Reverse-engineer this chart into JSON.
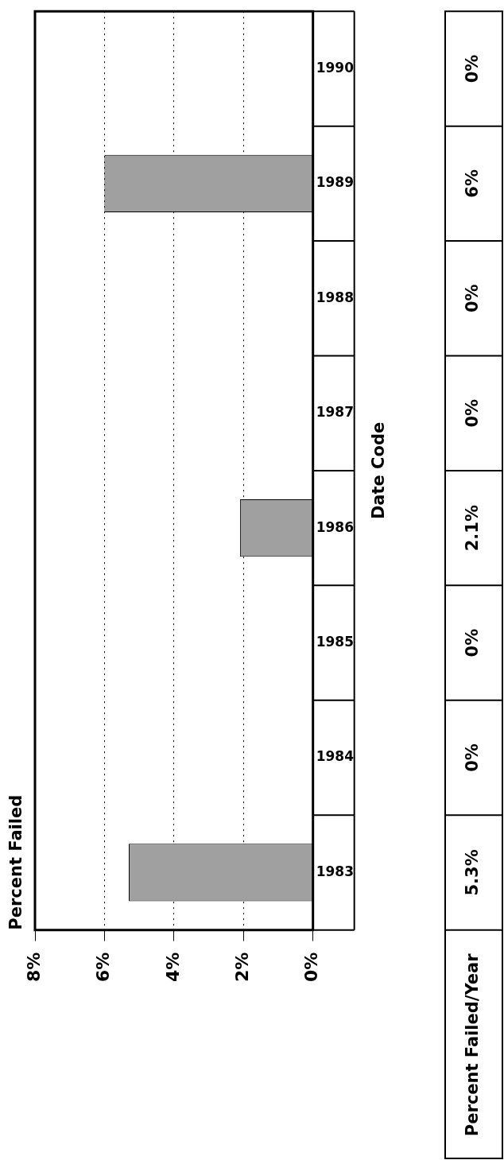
{
  "chart_data": {
    "type": "bar",
    "orientation": "horizontal",
    "ylabel": "Date Code",
    "categories": [
      "1990",
      "1989",
      "1988",
      "1987",
      "1986",
      "1985",
      "1984",
      "1983"
    ],
    "values": [
      0,
      6,
      0,
      0,
      2.1,
      0,
      0,
      5.3
    ],
    "value_labels": [
      "0%",
      "6%",
      "0%",
      "0%",
      "2.1%",
      "0%",
      "0%",
      "5.3%"
    ],
    "color": "#a0a0a0",
    "xlim": [
      8,
      0
    ],
    "xticks": [
      {
        "value": 0,
        "label": "0%"
      },
      {
        "value": 2,
        "label": "2%"
      },
      {
        "value": 4,
        "label": "4%"
      },
      {
        "value": 6,
        "label": "6%"
      },
      {
        "value": 8,
        "label": "8%"
      }
    ],
    "grid": "x",
    "line_style": "dotted",
    "annotations": [
      "Percent Failed",
      "Percent Failed/Year"
    ]
  }
}
